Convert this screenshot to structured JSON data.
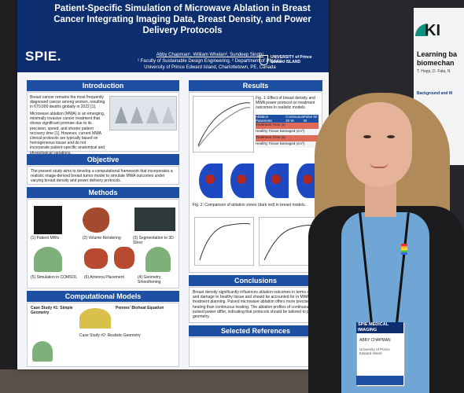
{
  "poster": {
    "title": "Patient-Specific Simulation of Microwave Ablation in Breast Cancer Integrating Imaging Data, Breast Density, and Power Delivery Protocols",
    "authors": "Abby Chapman¹, William Whelan², Sundeep Singh¹",
    "affiliations": "¹ Faculty of Sustainable Design Engineering, ² Department of Physics",
    "university": "University of Prince Edward Island, Charlottetown, PE, Canada",
    "sponsor_logo": "SPIE.",
    "university_logo": "UNIVERSITY of Prince Edward ISLAND",
    "sections": {
      "introduction": "Introduction",
      "objective": "Objective",
      "methods": "Methods",
      "computational_models": "Computational Models",
      "results": "Results",
      "conclusions": "Conclusions",
      "selected_references": "Selected References"
    },
    "intro_text_1": "Breast cancer remains the most frequently diagnosed cancer among women, resulting in 670,000 deaths globally in 2022 [1].",
    "intro_text_2": "Microwave ablation (MWA) is an emerging, minimally invasive cancer treatment that shows significant promise due to its precision, speed, and shorter patient recovery time [1]. However, current MWA clinical protocols are typically based on homogeneous tissue and do not incorporate patient-specific anatomical and physiological variations.",
    "objective_text": "The present study aims to develop a computational framework that incorporates a realistic image-derived breast tumor model to simulate MWA outcomes under varying breast density and power delivery protocols.",
    "methods_labels": [
      "(1) Patient MRIs",
      "(2) Volume Rendering",
      "(3) Segmentation to 3D Slicer",
      "(4) Geometry Smoothening",
      "(5) Simulation in COMSOL",
      "(6) Antenna Placement"
    ],
    "cm_text": "Case Study #1: Simple Geometry",
    "cm_equation": "Pennes' Bioheat Equation",
    "cm_text_2": "Case Study #2: Realistic Geometry",
    "results_fig1": "Fig. 1: Effect of breast density and MWA power protocol on treatment outcomes in realistic models.",
    "results_table_header": [
      "Ablation Parameter",
      "Continuous 30 W",
      "Pulse 60 W"
    ],
    "results_table_rows": [
      [
        "Treatment Time (s)",
        "",
        ""
      ],
      [
        "Healthy Tissue Damaged (cm³)",
        "",
        ""
      ],
      [
        "Treatment Time (s)",
        "",
        ""
      ],
      [
        "Healthy Tissue Damaged (cm³)",
        "",
        ""
      ]
    ],
    "results_fig2": "Fig. 2: Comparison of ablation zones (dark red) in breast models.",
    "conclusions_text": "Breast density significantly influences ablation outcomes in terms of size and damage to healthy tissue and should be accounted for in MWA treatment planning. Pulsed microwave ablation offers more precise heating than continuous heating. The ablation profiles of continuous and pulsed power differ, indicating that protocols should be tailored to patient geometry.",
    "references_text": ""
  },
  "background_poster": {
    "logo": "KI",
    "title": "Learning ba biomechan",
    "authors": "T. Hopp, D. Fala, N",
    "section": "Background and M"
  },
  "badge": {
    "header": "SPIE MEDICAL IMAGING",
    "name": "ABBY CHAPMAN",
    "role": "University of Prince Edward Island"
  },
  "colors": {
    "poster_header": "#0c2d6e",
    "section_bar": "#1d4fa3",
    "shirt": "#6fa6d6",
    "hair": "#b08a58"
  }
}
